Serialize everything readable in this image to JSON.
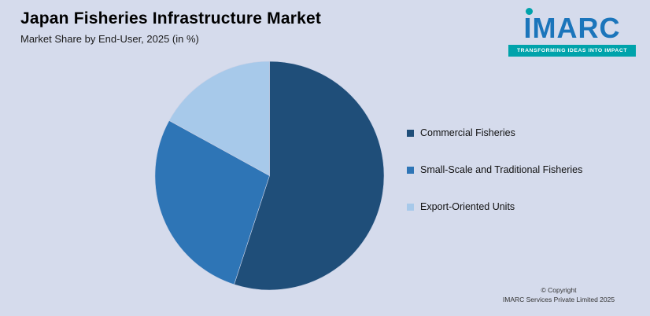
{
  "header": {
    "title": "Japan Fisheries Infrastructure Market",
    "subtitle": "Market Share by End-User, 2025 (in %)"
  },
  "logo": {
    "name": "IMARC",
    "tagline": "TRANSFORMING IDEAS INTO IMPACT",
    "brand_blue": "#1b75bb",
    "brand_teal": "#00a3ab"
  },
  "chart_data": {
    "type": "pie",
    "title": "Japan Fisheries Infrastructure Market",
    "subtitle": "Market Share by End-User, 2025 (in %)",
    "legend_position": "right",
    "value_labels_shown": false,
    "start_angle_deg": 0,
    "direction": "clockwise",
    "slices": [
      {
        "label": "Commercial Fisheries",
        "value": 55,
        "color": "#1f4e79"
      },
      {
        "label": "Small-Scale and Traditional Fisheries",
        "value": 28,
        "color": "#2e75b6"
      },
      {
        "label": "Export-Oriented Units",
        "value": 17,
        "color": "#a7c9ea"
      }
    ]
  },
  "footer": {
    "line1": "© Copyright",
    "line2": "IMARC Services Private Limited 2025"
  }
}
